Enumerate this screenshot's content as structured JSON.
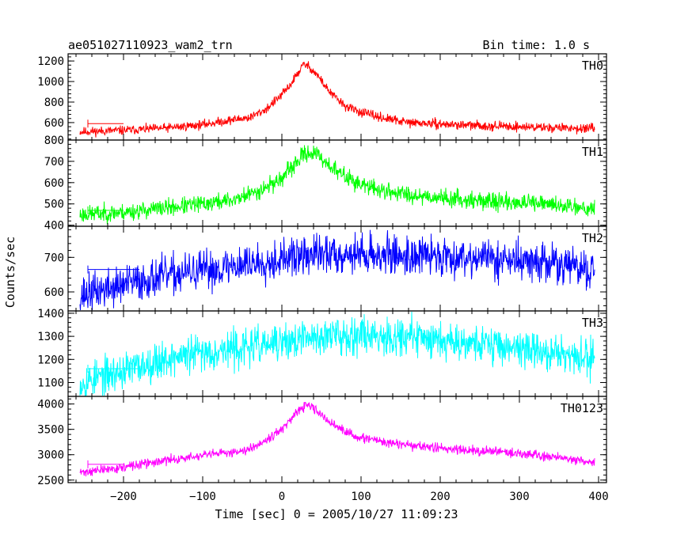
{
  "chart_data": {
    "type": "line",
    "title": "ae051027110923_wam2_trn",
    "bin_time": "Bin time: 1.0 s",
    "xlabel": "Time [sec] 0 = 2005/10/27 11:09:23",
    "ylabel": "Counts/sec",
    "xlim": [
      -270,
      410
    ],
    "xticks": [
      -200,
      -100,
      0,
      100,
      200,
      300,
      400
    ],
    "xtick_labels": [
      "−200",
      "−100",
      "0",
      "100",
      "200",
      "300",
      "400"
    ],
    "panels": [
      {
        "name": "TH0",
        "color": "#ff0000",
        "ylim": [
          430,
          1270
        ],
        "yticks": [
          600,
          800,
          1000,
          1200
        ],
        "ytick_labels": [
          "600",
          "800",
          "1000",
          "1200"
        ],
        "noise": 22,
        "seed": 11,
        "points": [
          [
            -255,
            510
          ],
          [
            -200,
            525
          ],
          [
            -150,
            545
          ],
          [
            -100,
            580
          ],
          [
            -60,
            630
          ],
          [
            -40,
            650
          ],
          [
            -20,
            730
          ],
          [
            0,
            870
          ],
          [
            10,
            960
          ],
          [
            20,
            1080
          ],
          [
            28,
            1170
          ],
          [
            35,
            1140
          ],
          [
            45,
            1060
          ],
          [
            60,
            900
          ],
          [
            80,
            760
          ],
          [
            100,
            700
          ],
          [
            130,
            640
          ],
          [
            160,
            600
          ],
          [
            200,
            585
          ],
          [
            250,
            570
          ],
          [
            300,
            560
          ],
          [
            350,
            550
          ],
          [
            395,
            540
          ]
        ],
        "baseline": {
          "x": [
            -245,
            -200
          ],
          "y": 590
        }
      },
      {
        "name": "TH1",
        "color": "#00ff00",
        "ylim": [
          395,
          800
        ],
        "yticks": [
          400,
          500,
          600,
          700,
          800
        ],
        "ytick_labels": [
          "400",
          "500",
          "600",
          "700",
          "800"
        ],
        "noise": 20,
        "seed": 23,
        "points": [
          [
            -255,
            450
          ],
          [
            -200,
            460
          ],
          [
            -150,
            480
          ],
          [
            -100,
            500
          ],
          [
            -60,
            520
          ],
          [
            -30,
            560
          ],
          [
            0,
            620
          ],
          [
            15,
            680
          ],
          [
            30,
            740
          ],
          [
            40,
            740
          ],
          [
            55,
            700
          ],
          [
            70,
            650
          ],
          [
            100,
            590
          ],
          [
            130,
            560
          ],
          [
            160,
            545
          ],
          [
            200,
            530
          ],
          [
            250,
            515
          ],
          [
            300,
            505
          ],
          [
            350,
            495
          ],
          [
            395,
            480
          ]
        ],
        "baseline": {
          "x": [
            -245,
            -200
          ],
          "y": 470
        }
      },
      {
        "name": "TH2",
        "color": "#0000ff",
        "ylim": [
          545,
          790
        ],
        "yticks": [
          600,
          700
        ],
        "ytick_labels": [
          "600",
          "700"
        ],
        "noise": 28,
        "seed": 37,
        "points": [
          [
            -255,
            590
          ],
          [
            -200,
            620
          ],
          [
            -150,
            645
          ],
          [
            -100,
            660
          ],
          [
            -50,
            680
          ],
          [
            0,
            695
          ],
          [
            50,
            710
          ],
          [
            100,
            710
          ],
          [
            150,
            705
          ],
          [
            200,
            705
          ],
          [
            250,
            700
          ],
          [
            300,
            690
          ],
          [
            350,
            680
          ],
          [
            395,
            660
          ]
        ],
        "baseline": {
          "x": [
            -245,
            -180
          ],
          "y": 665
        }
      },
      {
        "name": "TH3",
        "color": "#00ffff",
        "ylim": [
          1040,
          1410
        ],
        "yticks": [
          1100,
          1200,
          1300,
          1400
        ],
        "ytick_labels": [
          "1100",
          "1200",
          "1300",
          "1400"
        ],
        "noise": 40,
        "seed": 53,
        "points": [
          [
            -255,
            1100
          ],
          [
            -200,
            1150
          ],
          [
            -150,
            1200
          ],
          [
            -100,
            1230
          ],
          [
            -50,
            1250
          ],
          [
            0,
            1270
          ],
          [
            50,
            1300
          ],
          [
            100,
            1310
          ],
          [
            150,
            1300
          ],
          [
            200,
            1290
          ],
          [
            250,
            1270
          ],
          [
            300,
            1250
          ],
          [
            350,
            1220
          ],
          [
            395,
            1200
          ]
        ],
        "baseline": {
          "x": [
            -245,
            -180
          ],
          "y": 1160
        }
      },
      {
        "name": "TH0123",
        "color": "#ff00ff",
        "ylim": [
          2450,
          4150
        ],
        "yticks": [
          2500,
          3000,
          3500,
          4000
        ],
        "ytick_labels": [
          "2500",
          "3000",
          "3500",
          "4000"
        ],
        "noise": 45,
        "seed": 71,
        "points": [
          [
            -255,
            2650
          ],
          [
            -200,
            2750
          ],
          [
            -150,
            2880
          ],
          [
            -100,
            2980
          ],
          [
            -50,
            3080
          ],
          [
            -30,
            3200
          ],
          [
            0,
            3500
          ],
          [
            15,
            3750
          ],
          [
            30,
            3980
          ],
          [
            40,
            3920
          ],
          [
            55,
            3700
          ],
          [
            80,
            3450
          ],
          [
            100,
            3330
          ],
          [
            150,
            3200
          ],
          [
            200,
            3130
          ],
          [
            250,
            3080
          ],
          [
            300,
            3030
          ],
          [
            350,
            2950
          ],
          [
            395,
            2850
          ]
        ],
        "baseline": {
          "x": [
            -245,
            -200
          ],
          "y": 2810
        }
      }
    ]
  }
}
